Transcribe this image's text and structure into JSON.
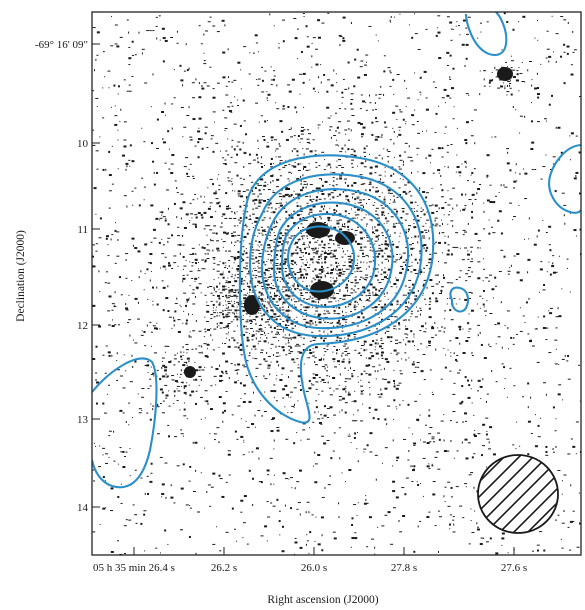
{
  "chart_data": {
    "type": "contour",
    "colors": {
      "contour": "#2b8fc9",
      "ink": "#1a1a1a",
      "frame": "#222222"
    },
    "xlabel": "Right ascension (J2000)",
    "ylabel": "Declination (J2000)",
    "x_tick_labels": [
      "05 h 35 min 26.4 s",
      "26.2 s",
      "26.0 s",
      "27.8 s",
      "27.6 s"
    ],
    "y_tick_labels": [
      "-69° 16' 09\"",
      "10",
      "11",
      "12",
      "13",
      "14"
    ],
    "background": "greyscale optical image",
    "contour_levels": 6,
    "beam_marker": "hatched ellipse"
  }
}
